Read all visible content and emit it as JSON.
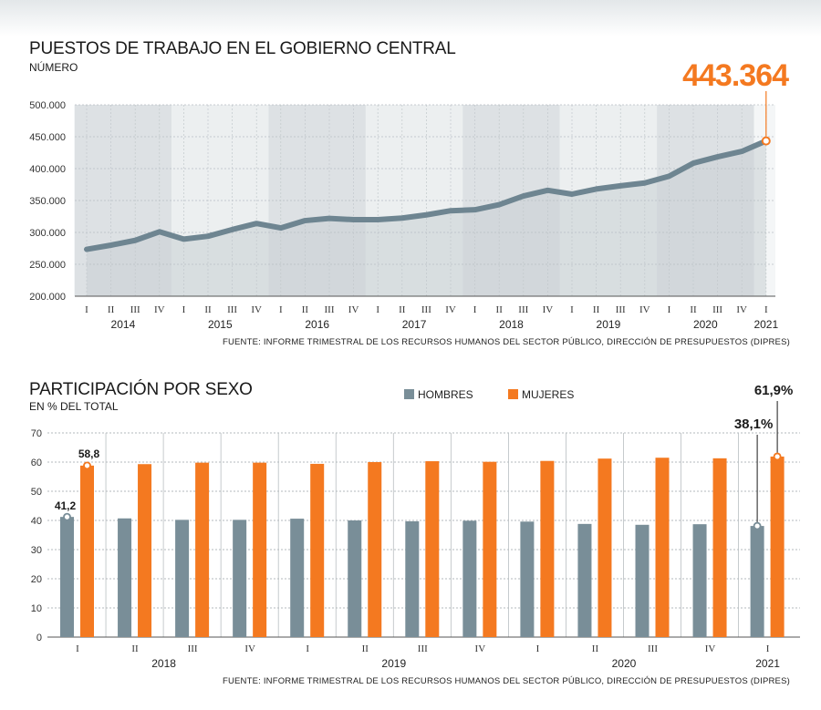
{
  "colors": {
    "line": "#6e8591",
    "hombres": "#798e98",
    "mujeres": "#f47920",
    "band_dark": "#dde1e4",
    "band_light": "#eceff0",
    "area": "#c9d0d4"
  },
  "chart_data": [
    {
      "type": "area",
      "title": "PUESTOS DE TRABAJO EN EL GOBIERNO CENTRAL",
      "subtitle": "NÚMERO",
      "highlight_label": "443.364",
      "source": "FUENTE: INFORME TRIMESTRAL DE LOS RECURSOS HUMANOS DEL SECTOR PÚBLICO, DIRECCIÓN DE PRESUPUESTOS (DIPRES)",
      "ylim": [
        200000,
        500000
      ],
      "yticks": [
        "200.000",
        "250.000",
        "300.000",
        "350.000",
        "400.000",
        "450.000",
        "500.000"
      ],
      "quarter_labels": [
        "I",
        "II",
        "III",
        "IV",
        "I",
        "II",
        "III",
        "IV",
        "I",
        "II",
        "III",
        "IV",
        "I",
        "II",
        "III",
        "IV",
        "I",
        "II",
        "III",
        "IV",
        "I",
        "II",
        "III",
        "IV",
        "I",
        "II",
        "III",
        "IV",
        "I"
      ],
      "years": [
        "2014",
        "2015",
        "2016",
        "2017",
        "2018",
        "2019",
        "2020",
        "2021"
      ],
      "values": [
        273500,
        280000,
        287500,
        301000,
        289500,
        294000,
        304500,
        314000,
        307000,
        318500,
        322000,
        320000,
        320000,
        322500,
        327500,
        334000,
        335500,
        343500,
        357000,
        366000,
        360000,
        368000,
        373000,
        377500,
        388000,
        408500,
        418500,
        427000,
        443364
      ]
    },
    {
      "type": "bar",
      "title": "PARTICIPACIÓN POR SEXO",
      "subtitle": "EN % DEL TOTAL",
      "source": "FUENTE: INFORME TRIMESTRAL DE LOS RECURSOS HUMANOS DEL SECTOR PÚBLICO, DIRECCIÓN DE PRESUPUESTOS (DIPRES)",
      "ylim": [
        0,
        70
      ],
      "yticks": [
        "0",
        "10",
        "20",
        "30",
        "40",
        "50",
        "60",
        "70"
      ],
      "quarter_labels": [
        "I",
        "II",
        "III",
        "IV",
        "I",
        "II",
        "III",
        "IV",
        "I",
        "II",
        "III",
        "IV",
        "I"
      ],
      "years": [
        "2018",
        "2019",
        "2020",
        "2021"
      ],
      "series": [
        {
          "name": "HOMBRES",
          "values": [
            41.2,
            40.7,
            40.2,
            40.2,
            40.6,
            40.0,
            39.7,
            39.9,
            39.6,
            38.8,
            38.5,
            38.7,
            38.1
          ]
        },
        {
          "name": "MUJERES",
          "values": [
            58.8,
            59.3,
            59.8,
            59.8,
            59.4,
            60.0,
            60.3,
            60.1,
            60.4,
            61.2,
            61.5,
            61.3,
            61.9
          ]
        }
      ],
      "data_labels": {
        "first_hombres": "41,2",
        "first_mujeres": "58,8",
        "last_hombres": "38,1%",
        "last_mujeres": "61,9%"
      }
    }
  ]
}
